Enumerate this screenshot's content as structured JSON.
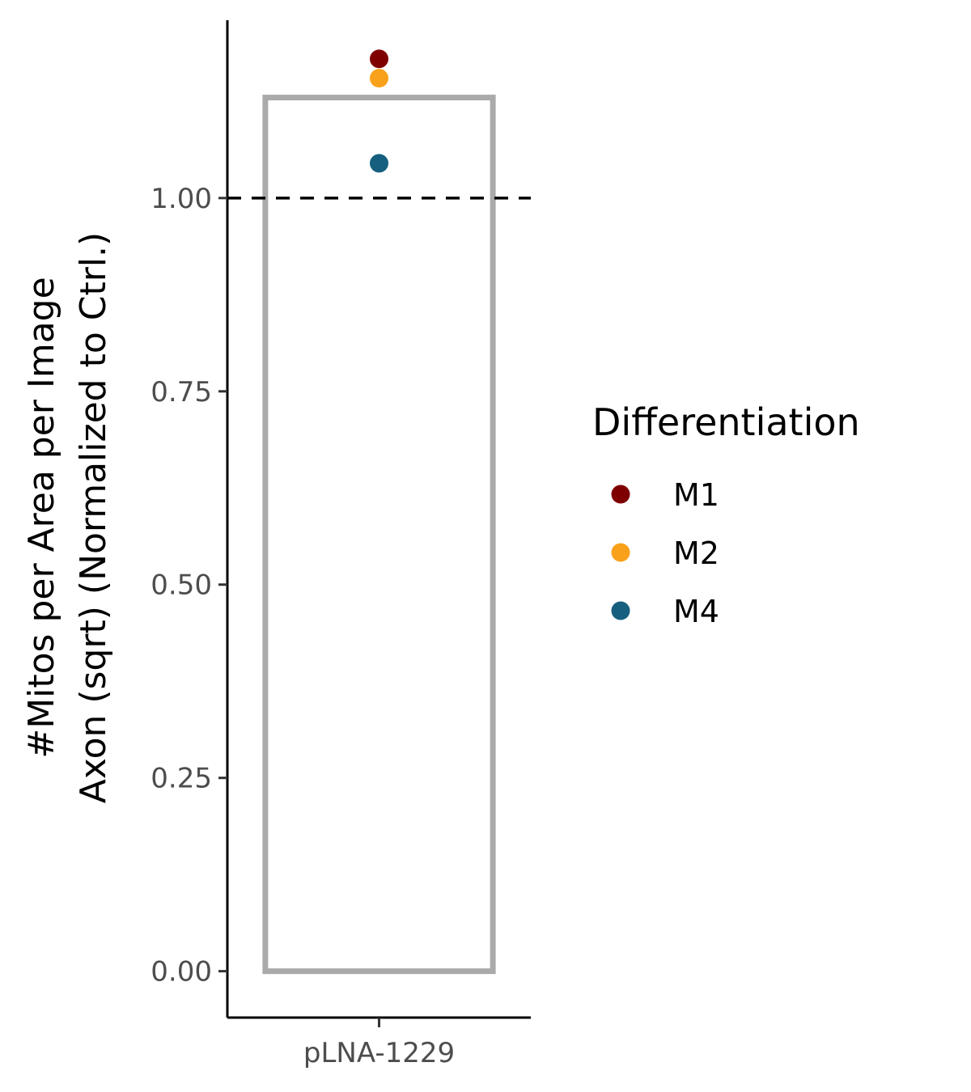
{
  "chart_data": {
    "type": "bar",
    "categories": [
      "pLNA-1229"
    ],
    "bar_values": [
      1.13
    ],
    "bar_style": "outline",
    "bar_outline_color": "#aaaaaa",
    "reference_line": 1.0,
    "reference_line_style": "dashed",
    "points": [
      {
        "category": "pLNA-1229",
        "group": "M1",
        "value": 1.18
      },
      {
        "category": "pLNA-1229",
        "group": "M2",
        "value": 1.155
      },
      {
        "category": "pLNA-1229",
        "group": "M4",
        "value": 1.045
      }
    ],
    "ylabel_lines": [
      "#Mitos per Area per Image",
      "Axon (sqrt) (Normalized to Ctrl.)"
    ],
    "xlabel": "",
    "yticks": [
      0.0,
      0.25,
      0.5,
      0.75,
      1.0
    ],
    "ytick_labels": [
      "0.00",
      "0.25",
      "0.50",
      "0.75",
      "1.00"
    ],
    "ylim": [
      -0.06,
      1.23
    ],
    "grid": false,
    "legend": {
      "title": "Differentiation",
      "position": "right",
      "entries": [
        {
          "label": "M1",
          "color": "#7f0000"
        },
        {
          "label": "M2",
          "color": "#f9a11b"
        },
        {
          "label": "M4",
          "color": "#165f7f"
        }
      ]
    }
  }
}
